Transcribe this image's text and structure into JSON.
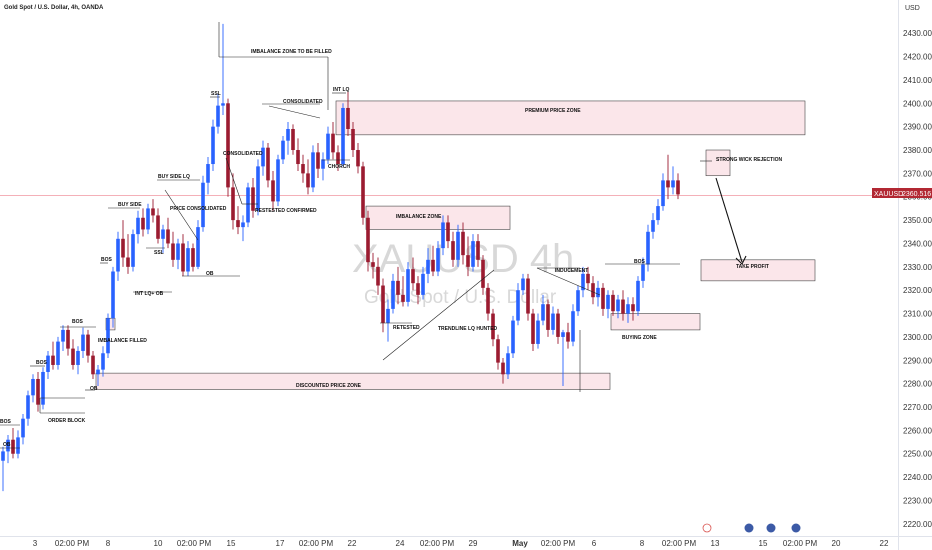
{
  "header": {
    "symbol_line": "Gold Spot / U.S. Dollar, 4h, OANDA",
    "currency": "USD"
  },
  "watermark": {
    "line1": "XAUUSD 4h",
    "line2": "Gold Spot / U.S. Dollar"
  },
  "price_tag": {
    "symbol": "XAUUSD",
    "value": "2360.516"
  },
  "colors": {
    "up": "#2962ff",
    "down": "#9b1b30",
    "zone_fill": "#fbe6ea",
    "zone_stroke": "#444444",
    "current_line": "#f2a5ae",
    "arrow": "#111111"
  },
  "chart_data": {
    "type": "candlestick",
    "title": "Gold Spot / U.S. Dollar, 4h, OANDA",
    "ylim": [
      2216.5,
      2442.5
    ],
    "y_ticks": [
      2220,
      2230,
      2240,
      2250,
      2260,
      2270,
      2280,
      2290,
      2300,
      2310,
      2320,
      2330,
      2340,
      2350,
      2360,
      2370,
      2380,
      2390,
      2400,
      2410,
      2420,
      2430
    ],
    "x_ticks": [
      "3",
      "02:00 PM",
      "8",
      "10",
      "02:00 PM",
      "15",
      "17",
      "02:00 PM",
      "22",
      "24",
      "02:00 PM",
      "29",
      "May",
      "02:00 PM",
      "6",
      "8",
      "02:00 PM",
      "13",
      "15",
      "02:00 PM",
      "20",
      "22"
    ],
    "current_price": 2360.516,
    "candles": [
      {
        "o": 2247.0,
        "h": 2253.0,
        "l": 2234.0,
        "c": 2251.0
      },
      {
        "o": 2251.0,
        "h": 2258.0,
        "l": 2246.0,
        "c": 2256.0
      },
      {
        "o": 2256.0,
        "h": 2261.0,
        "l": 2248.0,
        "c": 2250.0
      },
      {
        "o": 2250.0,
        "h": 2260.0,
        "l": 2248.0,
        "c": 2257.0
      },
      {
        "o": 2257.0,
        "h": 2267.0,
        "l": 2254.0,
        "c": 2265.0
      },
      {
        "o": 2265.0,
        "h": 2277.0,
        "l": 2262.0,
        "c": 2275.0
      },
      {
        "o": 2275.0,
        "h": 2284.0,
        "l": 2272.0,
        "c": 2282.0
      },
      {
        "o": 2282.0,
        "h": 2285.0,
        "l": 2268.0,
        "c": 2271.0
      },
      {
        "o": 2271.0,
        "h": 2287.0,
        "l": 2269.0,
        "c": 2285.0
      },
      {
        "o": 2285.0,
        "h": 2294.0,
        "l": 2282.0,
        "c": 2292.0
      },
      {
        "o": 2292.0,
        "h": 2298.0,
        "l": 2286.0,
        "c": 2288.0
      },
      {
        "o": 2288.0,
        "h": 2300.0,
        "l": 2286.0,
        "c": 2298.0
      },
      {
        "o": 2298.0,
        "h": 2305.0,
        "l": 2294.0,
        "c": 2303.0
      },
      {
        "o": 2303.0,
        "h": 2305.0,
        "l": 2292.0,
        "c": 2295.0
      },
      {
        "o": 2295.0,
        "h": 2299.0,
        "l": 2286.0,
        "c": 2288.0
      },
      {
        "o": 2288.0,
        "h": 2296.0,
        "l": 2284.0,
        "c": 2294.0
      },
      {
        "o": 2294.0,
        "h": 2304.0,
        "l": 2291.0,
        "c": 2301.0
      },
      {
        "o": 2301.0,
        "h": 2303.0,
        "l": 2289.0,
        "c": 2292.0
      },
      {
        "o": 2292.0,
        "h": 2294.0,
        "l": 2282.0,
        "c": 2284.0
      },
      {
        "o": 2284.0,
        "h": 2288.0,
        "l": 2279.0,
        "c": 2286.0
      },
      {
        "o": 2286.0,
        "h": 2296.0,
        "l": 2283.0,
        "c": 2293.0
      },
      {
        "o": 2293.0,
        "h": 2310.0,
        "l": 2291.0,
        "c": 2308.0
      },
      {
        "o": 2308.0,
        "h": 2330.0,
        "l": 2304.0,
        "c": 2328.0
      },
      {
        "o": 2328.0,
        "h": 2345.0,
        "l": 2324.0,
        "c": 2342.0
      },
      {
        "o": 2342.0,
        "h": 2350.0,
        "l": 2330.0,
        "c": 2334.0
      },
      {
        "o": 2334.0,
        "h": 2344.0,
        "l": 2327.0,
        "c": 2330.0
      },
      {
        "o": 2330.0,
        "h": 2346.0,
        "l": 2328.0,
        "c": 2344.0
      },
      {
        "o": 2344.0,
        "h": 2354.0,
        "l": 2340.0,
        "c": 2351.0
      },
      {
        "o": 2351.0,
        "h": 2355.0,
        "l": 2343.0,
        "c": 2346.0
      },
      {
        "o": 2346.0,
        "h": 2357.0,
        "l": 2344.0,
        "c": 2355.0
      },
      {
        "o": 2355.0,
        "h": 2359.0,
        "l": 2349.0,
        "c": 2352.0
      },
      {
        "o": 2352.0,
        "h": 2355.0,
        "l": 2340.0,
        "c": 2342.0
      },
      {
        "o": 2342.0,
        "h": 2348.0,
        "l": 2336.0,
        "c": 2346.0
      },
      {
        "o": 2346.0,
        "h": 2351.0,
        "l": 2338.0,
        "c": 2340.0
      },
      {
        "o": 2340.0,
        "h": 2345.0,
        "l": 2330.0,
        "c": 2333.0
      },
      {
        "o": 2333.0,
        "h": 2342.0,
        "l": 2329.0,
        "c": 2340.0
      },
      {
        "o": 2340.0,
        "h": 2344.0,
        "l": 2326.0,
        "c": 2328.0
      },
      {
        "o": 2328.0,
        "h": 2341.0,
        "l": 2326.0,
        "c": 2338.0
      },
      {
        "o": 2338.0,
        "h": 2340.0,
        "l": 2328.0,
        "c": 2330.0
      },
      {
        "o": 2330.0,
        "h": 2350.0,
        "l": 2329.0,
        "c": 2347.0
      },
      {
        "o": 2347.0,
        "h": 2369.0,
        "l": 2345.0,
        "c": 2366.0
      },
      {
        "o": 2366.0,
        "h": 2377.0,
        "l": 2361.0,
        "c": 2374.0
      },
      {
        "o": 2374.0,
        "h": 2393.0,
        "l": 2371.0,
        "c": 2390.0
      },
      {
        "o": 2390.0,
        "h": 2404.0,
        "l": 2387.0,
        "c": 2399.0
      },
      {
        "o": 2399.0,
        "h": 2434.0,
        "l": 2395.0,
        "c": 2400.0
      },
      {
        "o": 2400.0,
        "h": 2402.0,
        "l": 2360.0,
        "c": 2364.0
      },
      {
        "o": 2364.0,
        "h": 2370.0,
        "l": 2346.0,
        "c": 2350.0
      },
      {
        "o": 2350.0,
        "h": 2356.0,
        "l": 2344.0,
        "c": 2347.0
      },
      {
        "o": 2347.0,
        "h": 2352.0,
        "l": 2341.0,
        "c": 2349.0
      },
      {
        "o": 2349.0,
        "h": 2366.0,
        "l": 2347.0,
        "c": 2364.0
      },
      {
        "o": 2364.0,
        "h": 2368.0,
        "l": 2351.0,
        "c": 2354.0
      },
      {
        "o": 2354.0,
        "h": 2376.0,
        "l": 2352.0,
        "c": 2373.0
      },
      {
        "o": 2373.0,
        "h": 2384.0,
        "l": 2369.0,
        "c": 2381.0
      },
      {
        "o": 2381.0,
        "h": 2383.0,
        "l": 2364.0,
        "c": 2367.0
      },
      {
        "o": 2367.0,
        "h": 2371.0,
        "l": 2354.0,
        "c": 2358.0
      },
      {
        "o": 2358.0,
        "h": 2378.0,
        "l": 2356.0,
        "c": 2376.0
      },
      {
        "o": 2376.0,
        "h": 2386.0,
        "l": 2374.0,
        "c": 2384.0
      },
      {
        "o": 2384.0,
        "h": 2392.0,
        "l": 2378.0,
        "c": 2389.0
      },
      {
        "o": 2389.0,
        "h": 2391.0,
        "l": 2378.0,
        "c": 2380.0
      },
      {
        "o": 2380.0,
        "h": 2385.0,
        "l": 2371.0,
        "c": 2374.0
      },
      {
        "o": 2374.0,
        "h": 2378.0,
        "l": 2366.0,
        "c": 2370.0
      },
      {
        "o": 2370.0,
        "h": 2376.0,
        "l": 2361.0,
        "c": 2364.0
      },
      {
        "o": 2364.0,
        "h": 2382.0,
        "l": 2362.0,
        "c": 2379.0
      },
      {
        "o": 2379.0,
        "h": 2383.0,
        "l": 2368.0,
        "c": 2372.0
      },
      {
        "o": 2372.0,
        "h": 2379.0,
        "l": 2367.0,
        "c": 2376.0
      },
      {
        "o": 2376.0,
        "h": 2390.0,
        "l": 2374.0,
        "c": 2387.0
      },
      {
        "o": 2387.0,
        "h": 2392.0,
        "l": 2376.0,
        "c": 2379.0
      },
      {
        "o": 2379.0,
        "h": 2382.0,
        "l": 2371.0,
        "c": 2374.0
      },
      {
        "o": 2374.0,
        "h": 2400.0,
        "l": 2373.0,
        "c": 2398.0
      },
      {
        "o": 2398.0,
        "h": 2405.0,
        "l": 2386.0,
        "c": 2389.0
      },
      {
        "o": 2389.0,
        "h": 2392.0,
        "l": 2377.0,
        "c": 2380.0
      },
      {
        "o": 2380.0,
        "h": 2383.0,
        "l": 2370.0,
        "c": 2373.0
      },
      {
        "o": 2373.0,
        "h": 2375.0,
        "l": 2348.0,
        "c": 2351.0
      },
      {
        "o": 2351.0,
        "h": 2354.0,
        "l": 2328.0,
        "c": 2332.0
      },
      {
        "o": 2332.0,
        "h": 2336.0,
        "l": 2325.0,
        "c": 2330.0
      },
      {
        "o": 2330.0,
        "h": 2334.0,
        "l": 2318.0,
        "c": 2322.0
      },
      {
        "o": 2322.0,
        "h": 2325.0,
        "l": 2302.0,
        "c": 2306.0
      },
      {
        "o": 2306.0,
        "h": 2316.0,
        "l": 2298.0,
        "c": 2312.0
      },
      {
        "o": 2312.0,
        "h": 2327.0,
        "l": 2310.0,
        "c": 2324.0
      },
      {
        "o": 2324.0,
        "h": 2330.0,
        "l": 2314.0,
        "c": 2318.0
      },
      {
        "o": 2318.0,
        "h": 2326.0,
        "l": 2313.0,
        "c": 2315.0
      },
      {
        "o": 2315.0,
        "h": 2332.0,
        "l": 2313.0,
        "c": 2329.0
      },
      {
        "o": 2329.0,
        "h": 2334.0,
        "l": 2320.0,
        "c": 2323.0
      },
      {
        "o": 2323.0,
        "h": 2326.0,
        "l": 2314.0,
        "c": 2318.0
      },
      {
        "o": 2318.0,
        "h": 2330.0,
        "l": 2316.0,
        "c": 2327.0
      },
      {
        "o": 2327.0,
        "h": 2338.0,
        "l": 2323.0,
        "c": 2333.0
      },
      {
        "o": 2333.0,
        "h": 2339.0,
        "l": 2326.0,
        "c": 2328.0
      },
      {
        "o": 2328.0,
        "h": 2341.0,
        "l": 2326.0,
        "c": 2338.0
      },
      {
        "o": 2338.0,
        "h": 2352.0,
        "l": 2335.0,
        "c": 2349.0
      },
      {
        "o": 2349.0,
        "h": 2352.0,
        "l": 2338.0,
        "c": 2341.0
      },
      {
        "o": 2341.0,
        "h": 2345.0,
        "l": 2330.0,
        "c": 2333.0
      },
      {
        "o": 2333.0,
        "h": 2348.0,
        "l": 2330.0,
        "c": 2345.0
      },
      {
        "o": 2345.0,
        "h": 2349.0,
        "l": 2331.0,
        "c": 2335.0
      },
      {
        "o": 2335.0,
        "h": 2343.0,
        "l": 2326.0,
        "c": 2330.0
      },
      {
        "o": 2330.0,
        "h": 2344.0,
        "l": 2328.0,
        "c": 2341.0
      },
      {
        "o": 2341.0,
        "h": 2344.0,
        "l": 2330.0,
        "c": 2333.0
      },
      {
        "o": 2333.0,
        "h": 2335.0,
        "l": 2318.0,
        "c": 2321.0
      },
      {
        "o": 2321.0,
        "h": 2323.0,
        "l": 2307.0,
        "c": 2310.0
      },
      {
        "o": 2310.0,
        "h": 2312.0,
        "l": 2296.0,
        "c": 2299.0
      },
      {
        "o": 2299.0,
        "h": 2301.0,
        "l": 2286.0,
        "c": 2289.0
      },
      {
        "o": 2289.0,
        "h": 2291.0,
        "l": 2280.0,
        "c": 2284.0
      },
      {
        "o": 2284.0,
        "h": 2296.0,
        "l": 2282.0,
        "c": 2293.0
      },
      {
        "o": 2293.0,
        "h": 2309.0,
        "l": 2291.0,
        "c": 2307.0
      },
      {
        "o": 2307.0,
        "h": 2323.0,
        "l": 2305.0,
        "c": 2320.0
      },
      {
        "o": 2320.0,
        "h": 2327.0,
        "l": 2318.0,
        "c": 2325.0
      },
      {
        "o": 2325.0,
        "h": 2327.0,
        "l": 2307.0,
        "c": 2310.0
      },
      {
        "o": 2310.0,
        "h": 2312.0,
        "l": 2294.0,
        "c": 2297.0
      },
      {
        "o": 2297.0,
        "h": 2310.0,
        "l": 2295.0,
        "c": 2307.0
      },
      {
        "o": 2307.0,
        "h": 2318.0,
        "l": 2305.0,
        "c": 2314.0
      },
      {
        "o": 2314.0,
        "h": 2316.0,
        "l": 2300.0,
        "c": 2303.0
      },
      {
        "o": 2303.0,
        "h": 2313.0,
        "l": 2301.0,
        "c": 2310.0
      },
      {
        "o": 2310.0,
        "h": 2312.0,
        "l": 2297.0,
        "c": 2300.0
      },
      {
        "o": 2300.0,
        "h": 2303.0,
        "l": 2279.0,
        "c": 2302.0
      },
      {
        "o": 2302.0,
        "h": 2306.0,
        "l": 2295.0,
        "c": 2298.0
      },
      {
        "o": 2298.0,
        "h": 2314.0,
        "l": 2296.0,
        "c": 2311.0
      },
      {
        "o": 2311.0,
        "h": 2322.0,
        "l": 2309.0,
        "c": 2320.0
      },
      {
        "o": 2320.0,
        "h": 2330.0,
        "l": 2317.0,
        "c": 2327.0
      },
      {
        "o": 2327.0,
        "h": 2330.0,
        "l": 2320.0,
        "c": 2323.0
      },
      {
        "o": 2323.0,
        "h": 2326.0,
        "l": 2314.0,
        "c": 2317.0
      },
      {
        "o": 2317.0,
        "h": 2324.0,
        "l": 2313.0,
        "c": 2321.0
      },
      {
        "o": 2321.0,
        "h": 2323.0,
        "l": 2309.0,
        "c": 2312.0
      },
      {
        "o": 2312.0,
        "h": 2320.0,
        "l": 2308.0,
        "c": 2318.0
      },
      {
        "o": 2318.0,
        "h": 2320.0,
        "l": 2309.0,
        "c": 2311.0
      },
      {
        "o": 2311.0,
        "h": 2318.0,
        "l": 2308.0,
        "c": 2316.0
      },
      {
        "o": 2316.0,
        "h": 2320.0,
        "l": 2307.0,
        "c": 2310.0
      },
      {
        "o": 2310.0,
        "h": 2317.0,
        "l": 2306.0,
        "c": 2314.0
      },
      {
        "o": 2314.0,
        "h": 2317.0,
        "l": 2307.0,
        "c": 2311.0
      },
      {
        "o": 2311.0,
        "h": 2326.0,
        "l": 2309.0,
        "c": 2324.0
      },
      {
        "o": 2324.0,
        "h": 2334.0,
        "l": 2321.0,
        "c": 2331.0
      },
      {
        "o": 2331.0,
        "h": 2348.0,
        "l": 2328.0,
        "c": 2345.0
      },
      {
        "o": 2345.0,
        "h": 2353.0,
        "l": 2342.0,
        "c": 2350.0
      },
      {
        "o": 2350.0,
        "h": 2359.0,
        "l": 2348.0,
        "c": 2356.0
      },
      {
        "o": 2356.0,
        "h": 2370.0,
        "l": 2354.0,
        "c": 2367.0
      },
      {
        "o": 2367.0,
        "h": 2378.0,
        "l": 2359.0,
        "c": 2364.0
      },
      {
        "o": 2364.0,
        "h": 2373.0,
        "l": 2361.0,
        "c": 2367.0
      },
      {
        "o": 2367.0,
        "h": 2370.0,
        "l": 2359.0,
        "c": 2361.0
      }
    ]
  },
  "zones": [
    {
      "label": "PREMIUM PRICE ZONE",
      "p1": 2386.5,
      "p2": 2401.0,
      "from": 67,
      "to": 160
    },
    {
      "label": "IMBALANCE ZONE",
      "p1": 2346.0,
      "p2": 2356.0,
      "from": 73,
      "to": 101
    },
    {
      "label": "STRONG WICK REJECTION",
      "p1": 2369.0,
      "p2": 2380.0,
      "from": 141,
      "to": 145
    },
    {
      "label": "TAKE PROFIT",
      "p1": 2324.0,
      "p2": 2333.0,
      "from": 140,
      "to": 162
    },
    {
      "label": "BUYING ZONE",
      "p1": 2303.0,
      "p2": 2310.0,
      "from": 122,
      "to": 139
    },
    {
      "label": "DISCOUNTED PRICE ZONE",
      "p1": 2277.5,
      "p2": 2284.5,
      "from": 19,
      "to": 121
    },
    {
      "label": "IMBALANCE FILLED",
      "p1": 2303.0,
      "p2": 2308.0,
      "from": 21,
      "to": 22
    }
  ],
  "labels": {
    "bos": "BOS",
    "ob": "OB",
    "order_block": "ORDER BLOCK",
    "imbalance_filled": "IMBALANCE FILLED",
    "int_lq_ob": "INT LQ+ OB",
    "buy_side": "BUY SIDE",
    "buy_side_lq": "BUY SIDE LQ",
    "price_consolidated": "PRICE CONSOLIDATED",
    "ssl_lower": "SSL",
    "ssl_upper": "SSL",
    "imbalance_zone_to_be_filled": "IMBALANCE ZONE TO BE FILLED",
    "consolidated_upper": "CONSOLIDATED",
    "consolidated_lower": "CONSOLIDATED",
    "restested_confirmed": "RESTESTED CONFIRMED",
    "int_lq": "INT LQ",
    "chorch": "CHORCH",
    "retested": "RETESTED",
    "trendline_lq_hunted": "TRENDLINE LQ HUNTED",
    "inducement": "INDUCEMENT",
    "bos_right": "BOS"
  }
}
